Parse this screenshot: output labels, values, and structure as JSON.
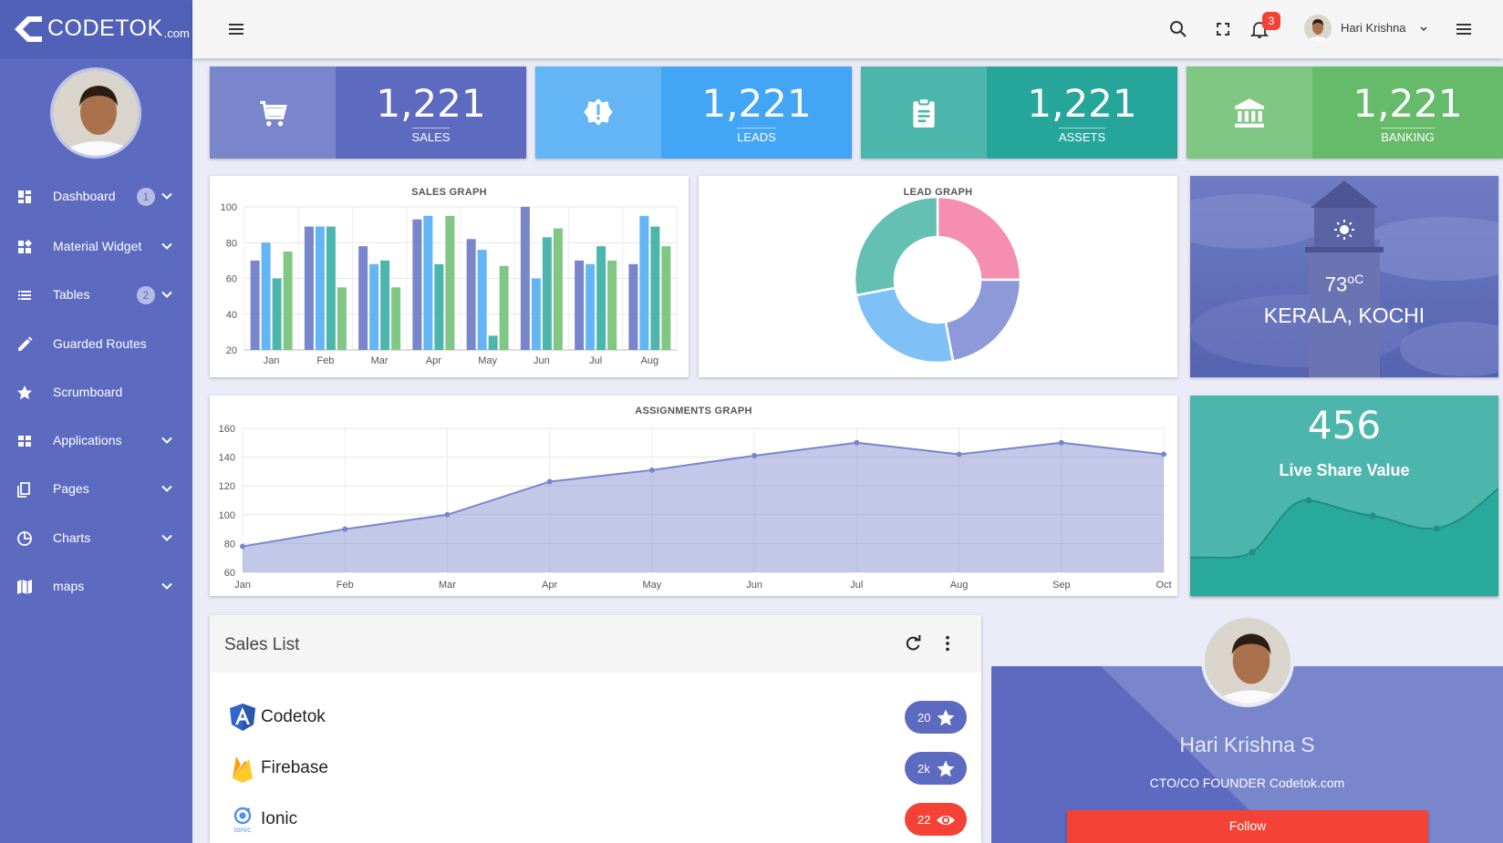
{
  "app": {
    "logo_text": "CODETOK",
    "logo_suffix": ".com"
  },
  "sidebar": {
    "items": [
      {
        "label": "Dashboard",
        "icon": "dashboard-icon",
        "badge": "1",
        "chevron": true
      },
      {
        "label": "Material Widget",
        "icon": "widgets-icon",
        "badge": "",
        "chevron": true
      },
      {
        "label": "Tables",
        "icon": "list-icon",
        "badge": "2",
        "chevron": true
      },
      {
        "label": "Guarded Routes",
        "icon": "pencil-icon",
        "badge": "",
        "chevron": false
      },
      {
        "label": "Scrumboard",
        "icon": "star-icon",
        "badge": "",
        "chevron": false
      },
      {
        "label": "Applications",
        "icon": "apps-icon",
        "badge": "",
        "chevron": true
      },
      {
        "label": "Pages",
        "icon": "pages-icon",
        "badge": "",
        "chevron": true
      },
      {
        "label": "Charts",
        "icon": "pie-chart-icon",
        "badge": "",
        "chevron": true
      },
      {
        "label": "maps",
        "icon": "map-icon",
        "badge": "",
        "chevron": true
      }
    ]
  },
  "topbar": {
    "notification_count": "3",
    "user_name": "Hari Krishna"
  },
  "stats": [
    {
      "value": "1,221",
      "label": "SALES",
      "icon": "cart-icon",
      "color_left": "#7986cb",
      "color_right": "#5c6bc0"
    },
    {
      "value": "1,221",
      "label": "LEADS",
      "icon": "alert-badge-icon",
      "color_left": "#64b5f6",
      "color_right": "#42a5f5"
    },
    {
      "value": "1,221",
      "label": "ASSETS",
      "icon": "clipboard-icon",
      "color_left": "#4db6ac",
      "color_right": "#26a69a"
    },
    {
      "value": "1,221",
      "label": "BANKING",
      "icon": "bank-icon",
      "color_left": "#81c784",
      "color_right": "#66bb6a"
    }
  ],
  "weather": {
    "temp": "73",
    "unit": "oC",
    "city": "KERALA, KOCHI",
    "icon": "sun-icon"
  },
  "live_share": {
    "value": "456",
    "label": "Live Share Value"
  },
  "sales_list": {
    "title": "Sales List",
    "items": [
      {
        "name": "Codetok",
        "icon": "angular-icon",
        "count": "20",
        "pill_icon": "star-icon",
        "pill_color": "#5c6bc0"
      },
      {
        "name": "Firebase",
        "icon": "firebase-icon",
        "count": "2k",
        "pill_icon": "star-icon",
        "pill_color": "#5c6bc0"
      },
      {
        "name": "Ionic",
        "icon": "ionic-icon",
        "count": "22",
        "pill_icon": "eye-icon",
        "pill_color": "#f44336"
      }
    ]
  },
  "profile_card": {
    "name": "Hari Krishna S",
    "role": "CTO/CO FOUNDER Codetok.com",
    "follow_label": "Follow"
  },
  "chart_data": [
    {
      "type": "bar",
      "title": "SALES GRAPH",
      "categories": [
        "Jan",
        "Feb",
        "Mar",
        "Apr",
        "May",
        "Jun",
        "Jul",
        "Aug"
      ],
      "ylim": [
        20,
        100
      ],
      "yticks": [
        20,
        40,
        60,
        80,
        100
      ],
      "colors": [
        "#7986cb",
        "#64b5f6",
        "#4db6ac",
        "#81c784"
      ],
      "series": [
        {
          "values": [
            70,
            89,
            78,
            93,
            82,
            100,
            70,
            68
          ]
        },
        {
          "values": [
            80,
            89,
            68,
            95,
            76,
            60,
            68,
            95
          ]
        },
        {
          "values": [
            60,
            89,
            70,
            68,
            28,
            83,
            78,
            89
          ]
        },
        {
          "values": [
            75,
            55,
            55,
            95,
            67,
            88,
            70,
            78
          ]
        }
      ]
    },
    {
      "type": "pie",
      "title": "LEAD GRAPH",
      "values": [
        25,
        22,
        25,
        28
      ],
      "colors": [
        "#f48fb1",
        "#8e99d9",
        "#7fc1f7",
        "#64c0b2"
      ]
    },
    {
      "type": "area",
      "title": "ASSIGNMENTS GRAPH",
      "categories": [
        "Jan",
        "Feb",
        "Mar",
        "Apr",
        "May",
        "Jun",
        "Jul",
        "Aug",
        "Sep",
        "Oct"
      ],
      "values": [
        78,
        90,
        100,
        123,
        131,
        141,
        150,
        142,
        150,
        142
      ],
      "ylim": [
        60,
        160
      ],
      "yticks": [
        60,
        80,
        100,
        120,
        140,
        160
      ],
      "color": "#7986cb"
    }
  ]
}
